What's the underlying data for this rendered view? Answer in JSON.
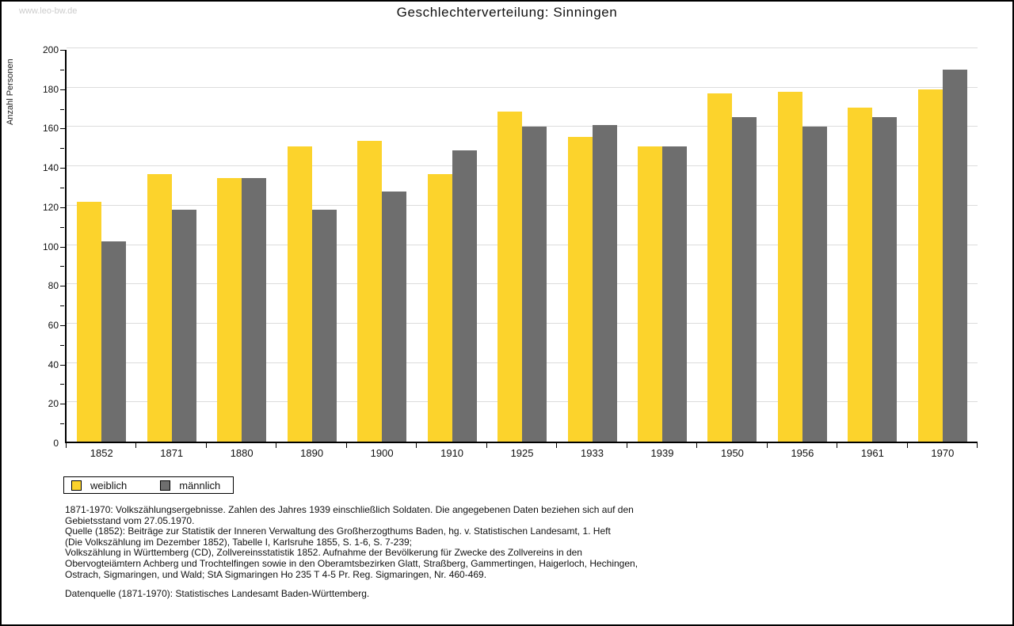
{
  "watermark": "www.leo-bw.de",
  "header": {
    "title": "Geschlechterverteilung: Sinningen"
  },
  "chart_data": {
    "type": "bar",
    "title": "Geschlechterverteilung: Sinningen",
    "xlabel": "",
    "ylabel": "Anzahl Personen",
    "ylim": [
      0,
      200
    ],
    "ytick_step": 20,
    "minor_tick_step": 10,
    "grid": true,
    "legend_position": "below-left",
    "categories": [
      "1852",
      "1871",
      "1880",
      "1890",
      "1900",
      "1910",
      "1925",
      "1933",
      "1939",
      "1950",
      "1956",
      "1961",
      "1970"
    ],
    "series": [
      {
        "name": "weiblich",
        "color": "#fcd32c",
        "values": [
          122,
          136,
          134,
          150,
          153,
          136,
          168,
          155,
          150,
          177,
          178,
          170,
          179
        ]
      },
      {
        "name": "männlich",
        "color": "#6e6e6e",
        "values": [
          102,
          118,
          134,
          118,
          127,
          148,
          160,
          161,
          150,
          165,
          160,
          165,
          189
        ]
      }
    ]
  },
  "footnotes": {
    "lines": [
      "1871-1970: Volkszählungsergebnisse. Zahlen des Jahres 1939 einschließlich Soldaten. Die angegebenen Daten beziehen sich auf den",
      "Gebietsstand vom 27.05.1970.",
      "Quelle (1852): Beiträge zur Statistik der Inneren Verwaltung des Großherzogthums Baden, hg. v. Statistischen Landesamt, 1. Heft",
      "(Die Volkszählung im Dezember 1852), Tabelle I, Karlsruhe 1855, S. 1-6, S. 7-239;",
      "Volkszählung in Württemberg (CD), Zollvereinsstatistik 1852. Aufnahme der Bevölkerung für Zwecke des Zollvereins in den",
      "Obervogteiämtern Achberg und Trochtelfingen sowie in den Oberamtsbezirken Glatt, Straßberg, Gammertingen, Haigerloch, Hechingen,",
      "Ostrach, Sigmaringen, und Wald; StA Sigmaringen Ho 235 T 4-5 Pr. Reg. Sigmaringen, Nr. 460-469."
    ],
    "datasource": "Datenquelle (1871-1970): Statistisches Landesamt Baden-Württemberg."
  },
  "colors": {
    "bar_female": "#fcd32c",
    "bar_male": "#6e6e6e",
    "gridline": "#dcdcdc",
    "axis": "#000000",
    "watermark_text": "#cccccc",
    "background": "#ffffff"
  }
}
